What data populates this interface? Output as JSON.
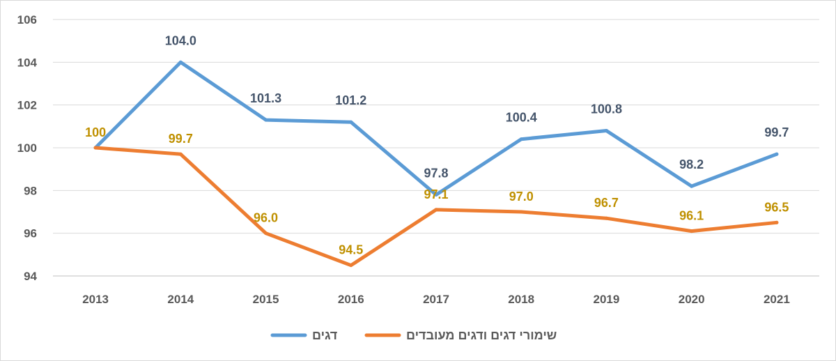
{
  "chart_data": {
    "type": "line",
    "x": [
      "2013",
      "2014",
      "2015",
      "2016",
      "2017",
      "2018",
      "2019",
      "2020",
      "2021"
    ],
    "ylim": [
      94,
      106
    ],
    "yticks": [
      94,
      96,
      98,
      100,
      102,
      104,
      106
    ],
    "grid": true,
    "legend_position": "bottom",
    "series": [
      {
        "name": "דגים",
        "color": "#5b9bd5",
        "label_color": "#44546a",
        "values": [
          100,
          104.0,
          101.3,
          101.2,
          97.8,
          100.4,
          100.8,
          98.2,
          99.7
        ],
        "labels": [
          "",
          "104.0",
          "101.3",
          "101.2",
          "97.8",
          "100.4",
          "100.8",
          "98.2",
          "99.7"
        ]
      },
      {
        "name": "שימורי דגים ודגים מעובדים",
        "color": "#ed7d31",
        "label_color": "#bf9000",
        "values": [
          100,
          99.7,
          96.0,
          94.5,
          97.1,
          97.0,
          96.7,
          96.1,
          96.5
        ],
        "labels": [
          "100",
          "99.7",
          "96.0",
          "94.5",
          "97.1",
          "97.0",
          "96.7",
          "96.1",
          "96.5"
        ]
      }
    ]
  }
}
